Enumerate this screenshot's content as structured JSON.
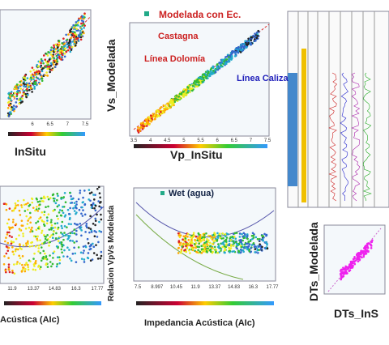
{
  "panels": {
    "top_left": {
      "x_label": "InSitu",
      "x_ticks": [
        "6",
        "6.5",
        "7",
        "7.5"
      ]
    },
    "top_middle": {
      "title": "Modelada con Ec.",
      "annotations": [
        "Castagna",
        "Línea Dolomía",
        "Línea Caliza"
      ],
      "y_label": "Vs_Modelada",
      "x_label": "Vp_InSitu",
      "x_ticks": [
        "3.5",
        "4",
        "4.5",
        "5",
        "5.5",
        "6",
        "6.5",
        "7",
        "7.5"
      ]
    },
    "bottom_left": {
      "x_label": "Acústica (AIc)",
      "x_ticks": [
        "11.9",
        "13.37",
        "14.83",
        "16.3",
        "17.77"
      ]
    },
    "bottom_middle": {
      "title": "Wet (agua)",
      "y_label": "Relacion VpVs Modelada",
      "x_label": "Impedancia Acústica (AIc)",
      "x_ticks": [
        "7.5",
        "8.997",
        "10.45",
        "11.9",
        "13.37",
        "14.83",
        "16.3",
        "17.77"
      ]
    },
    "bottom_right": {
      "y_label": "DTs_Modelada",
      "x_label": "DTs_InS"
    }
  }
}
